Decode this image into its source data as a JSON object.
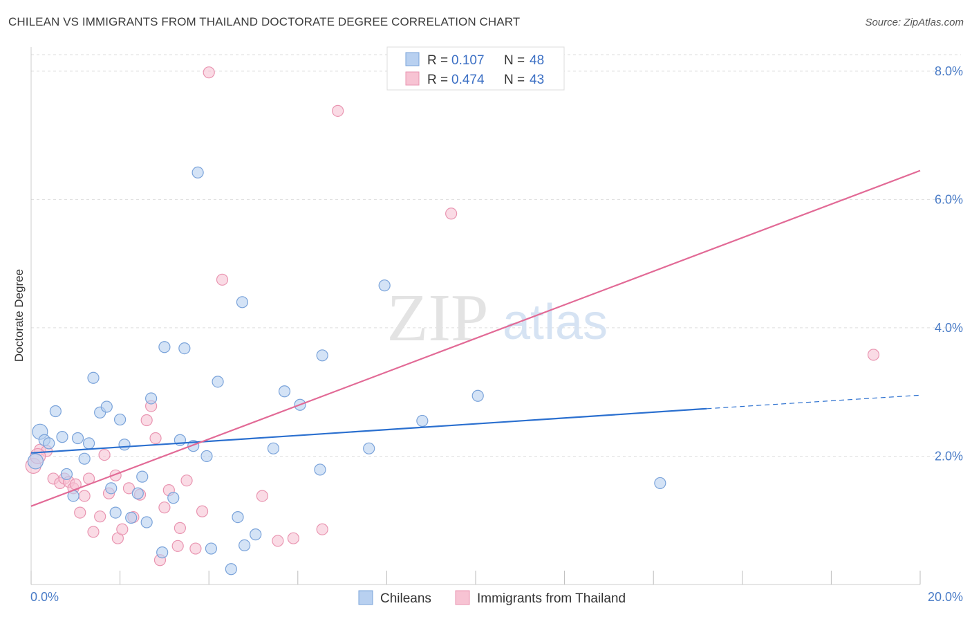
{
  "title": "CHILEAN VS IMMIGRANTS FROM THAILAND DOCTORATE DEGREE CORRELATION CHART",
  "source": "Source: ZipAtlas.com",
  "watermark": {
    "zip": "ZIP",
    "atlas": "atlas"
  },
  "legend": {
    "r_label": "R =",
    "n_label": "N =",
    "rows": [
      {
        "r": "0.107",
        "n": "48"
      },
      {
        "r": "0.474",
        "n": "43"
      }
    ]
  },
  "colors": {
    "blue_fill": "#b8d0f0",
    "blue_stroke": "#7aa3da",
    "blue_line": "#2a6fcf",
    "pink_fill": "#f7c3d3",
    "pink_stroke": "#e995b1",
    "pink_line": "#e26a96",
    "tick_text": "#4a7cc7",
    "grid": "#dddddd"
  },
  "chart_data": {
    "type": "scatter",
    "title": "CHILEAN VS IMMIGRANTS FROM THAILAND DOCTORATE DEGREE CORRELATION CHART",
    "xlabel": "",
    "ylabel": "Doctorate Degree",
    "xlim": [
      0,
      20
    ],
    "ylim": [
      0,
      8.3
    ],
    "x_tick_labels": [
      "0.0%",
      "20.0%"
    ],
    "y_ticks": [
      2,
      4,
      6,
      8
    ],
    "y_tick_labels": [
      "2.0%",
      "4.0%",
      "6.0%",
      "8.0%"
    ],
    "grid": true,
    "legend_position": "top-center",
    "series": [
      {
        "name": "Chileans",
        "color": "#b8d0f0",
        "trend": {
          "x": [
            0,
            15.2
          ],
          "y": [
            2.05,
            2.74
          ],
          "dashed_to": [
            20,
            2.95
          ]
        },
        "points": [
          {
            "x": 0.2,
            "y": 2.38,
            "big": true
          },
          {
            "x": 0.3,
            "y": 2.25
          },
          {
            "x": 0.4,
            "y": 2.2
          },
          {
            "x": 0.55,
            "y": 2.7
          },
          {
            "x": 0.7,
            "y": 2.3
          },
          {
            "x": 0.8,
            "y": 1.72
          },
          {
            "x": 0.95,
            "y": 1.38
          },
          {
            "x": 1.05,
            "y": 2.28
          },
          {
            "x": 1.2,
            "y": 1.96
          },
          {
            "x": 1.3,
            "y": 2.2
          },
          {
            "x": 1.4,
            "y": 3.22
          },
          {
            "x": 1.55,
            "y": 2.68
          },
          {
            "x": 1.7,
            "y": 2.77
          },
          {
            "x": 1.8,
            "y": 1.5
          },
          {
            "x": 1.9,
            "y": 1.12
          },
          {
            "x": 2.0,
            "y": 2.57
          },
          {
            "x": 2.1,
            "y": 2.18
          },
          {
            "x": 2.25,
            "y": 1.04
          },
          {
            "x": 2.4,
            "y": 1.42
          },
          {
            "x": 2.5,
            "y": 1.68
          },
          {
            "x": 2.6,
            "y": 0.97
          },
          {
            "x": 2.7,
            "y": 2.9
          },
          {
            "x": 2.95,
            "y": 0.5
          },
          {
            "x": 3.0,
            "y": 3.7
          },
          {
            "x": 3.2,
            "y": 1.35
          },
          {
            "x": 3.35,
            "y": 2.25
          },
          {
            "x": 3.45,
            "y": 3.68
          },
          {
            "x": 3.65,
            "y": 2.16
          },
          {
            "x": 3.75,
            "y": 6.42
          },
          {
            "x": 3.95,
            "y": 2.0
          },
          {
            "x": 4.05,
            "y": 0.56
          },
          {
            "x": 4.2,
            "y": 3.16
          },
          {
            "x": 4.5,
            "y": 0.24
          },
          {
            "x": 4.65,
            "y": 1.05
          },
          {
            "x": 4.75,
            "y": 4.4
          },
          {
            "x": 4.8,
            "y": 0.61
          },
          {
            "x": 5.05,
            "y": 0.78
          },
          {
            "x": 5.45,
            "y": 2.12
          },
          {
            "x": 5.7,
            "y": 3.01
          },
          {
            "x": 6.05,
            "y": 2.8
          },
          {
            "x": 6.5,
            "y": 1.79
          },
          {
            "x": 6.55,
            "y": 3.57
          },
          {
            "x": 7.6,
            "y": 2.12
          },
          {
            "x": 7.95,
            "y": 4.66
          },
          {
            "x": 8.8,
            "y": 2.55
          },
          {
            "x": 10.05,
            "y": 2.94
          },
          {
            "x": 14.15,
            "y": 1.58
          },
          {
            "x": 0.1,
            "y": 1.92,
            "big": true
          }
        ]
      },
      {
        "name": "Immigrants from Thailand",
        "color": "#f7c3d3",
        "trend": {
          "x": [
            0,
            20
          ],
          "y": [
            1.22,
            6.45
          ]
        },
        "points": [
          {
            "x": 0.05,
            "y": 1.85,
            "big": true
          },
          {
            "x": 0.2,
            "y": 2.1
          },
          {
            "x": 0.35,
            "y": 2.08
          },
          {
            "x": 0.5,
            "y": 1.65
          },
          {
            "x": 0.65,
            "y": 1.58
          },
          {
            "x": 0.75,
            "y": 1.65
          },
          {
            "x": 0.85,
            "y": 1.6
          },
          {
            "x": 0.95,
            "y": 1.5
          },
          {
            "x": 1.1,
            "y": 1.12
          },
          {
            "x": 1.2,
            "y": 1.38
          },
          {
            "x": 1.3,
            "y": 1.65
          },
          {
            "x": 1.4,
            "y": 0.82
          },
          {
            "x": 1.55,
            "y": 1.06
          },
          {
            "x": 1.65,
            "y": 2.02
          },
          {
            "x": 1.75,
            "y": 1.42
          },
          {
            "x": 1.9,
            "y": 1.7
          },
          {
            "x": 1.95,
            "y": 0.72
          },
          {
            "x": 2.05,
            "y": 0.86
          },
          {
            "x": 2.2,
            "y": 1.5
          },
          {
            "x": 2.3,
            "y": 1.05
          },
          {
            "x": 2.45,
            "y": 1.4
          },
          {
            "x": 2.6,
            "y": 2.56
          },
          {
            "x": 2.7,
            "y": 2.78
          },
          {
            "x": 2.8,
            "y": 2.28
          },
          {
            "x": 2.9,
            "y": 0.38
          },
          {
            "x": 3.0,
            "y": 1.2
          },
          {
            "x": 3.1,
            "y": 1.47
          },
          {
            "x": 3.3,
            "y": 0.6
          },
          {
            "x": 3.35,
            "y": 0.88
          },
          {
            "x": 3.5,
            "y": 1.62
          },
          {
            "x": 3.7,
            "y": 0.56
          },
          {
            "x": 3.85,
            "y": 1.14
          },
          {
            "x": 4.0,
            "y": 7.98
          },
          {
            "x": 4.3,
            "y": 4.75
          },
          {
            "x": 5.2,
            "y": 1.38
          },
          {
            "x": 5.55,
            "y": 0.68
          },
          {
            "x": 5.9,
            "y": 0.72
          },
          {
            "x": 6.55,
            "y": 0.86
          },
          {
            "x": 6.9,
            "y": 7.38
          },
          {
            "x": 9.45,
            "y": 5.78
          },
          {
            "x": 18.95,
            "y": 3.58
          },
          {
            "x": 0.15,
            "y": 2.0,
            "big": true
          },
          {
            "x": 1.0,
            "y": 1.56
          }
        ]
      }
    ]
  },
  "bottom_legend": [
    "Chileans",
    "Immigrants from Thailand"
  ]
}
